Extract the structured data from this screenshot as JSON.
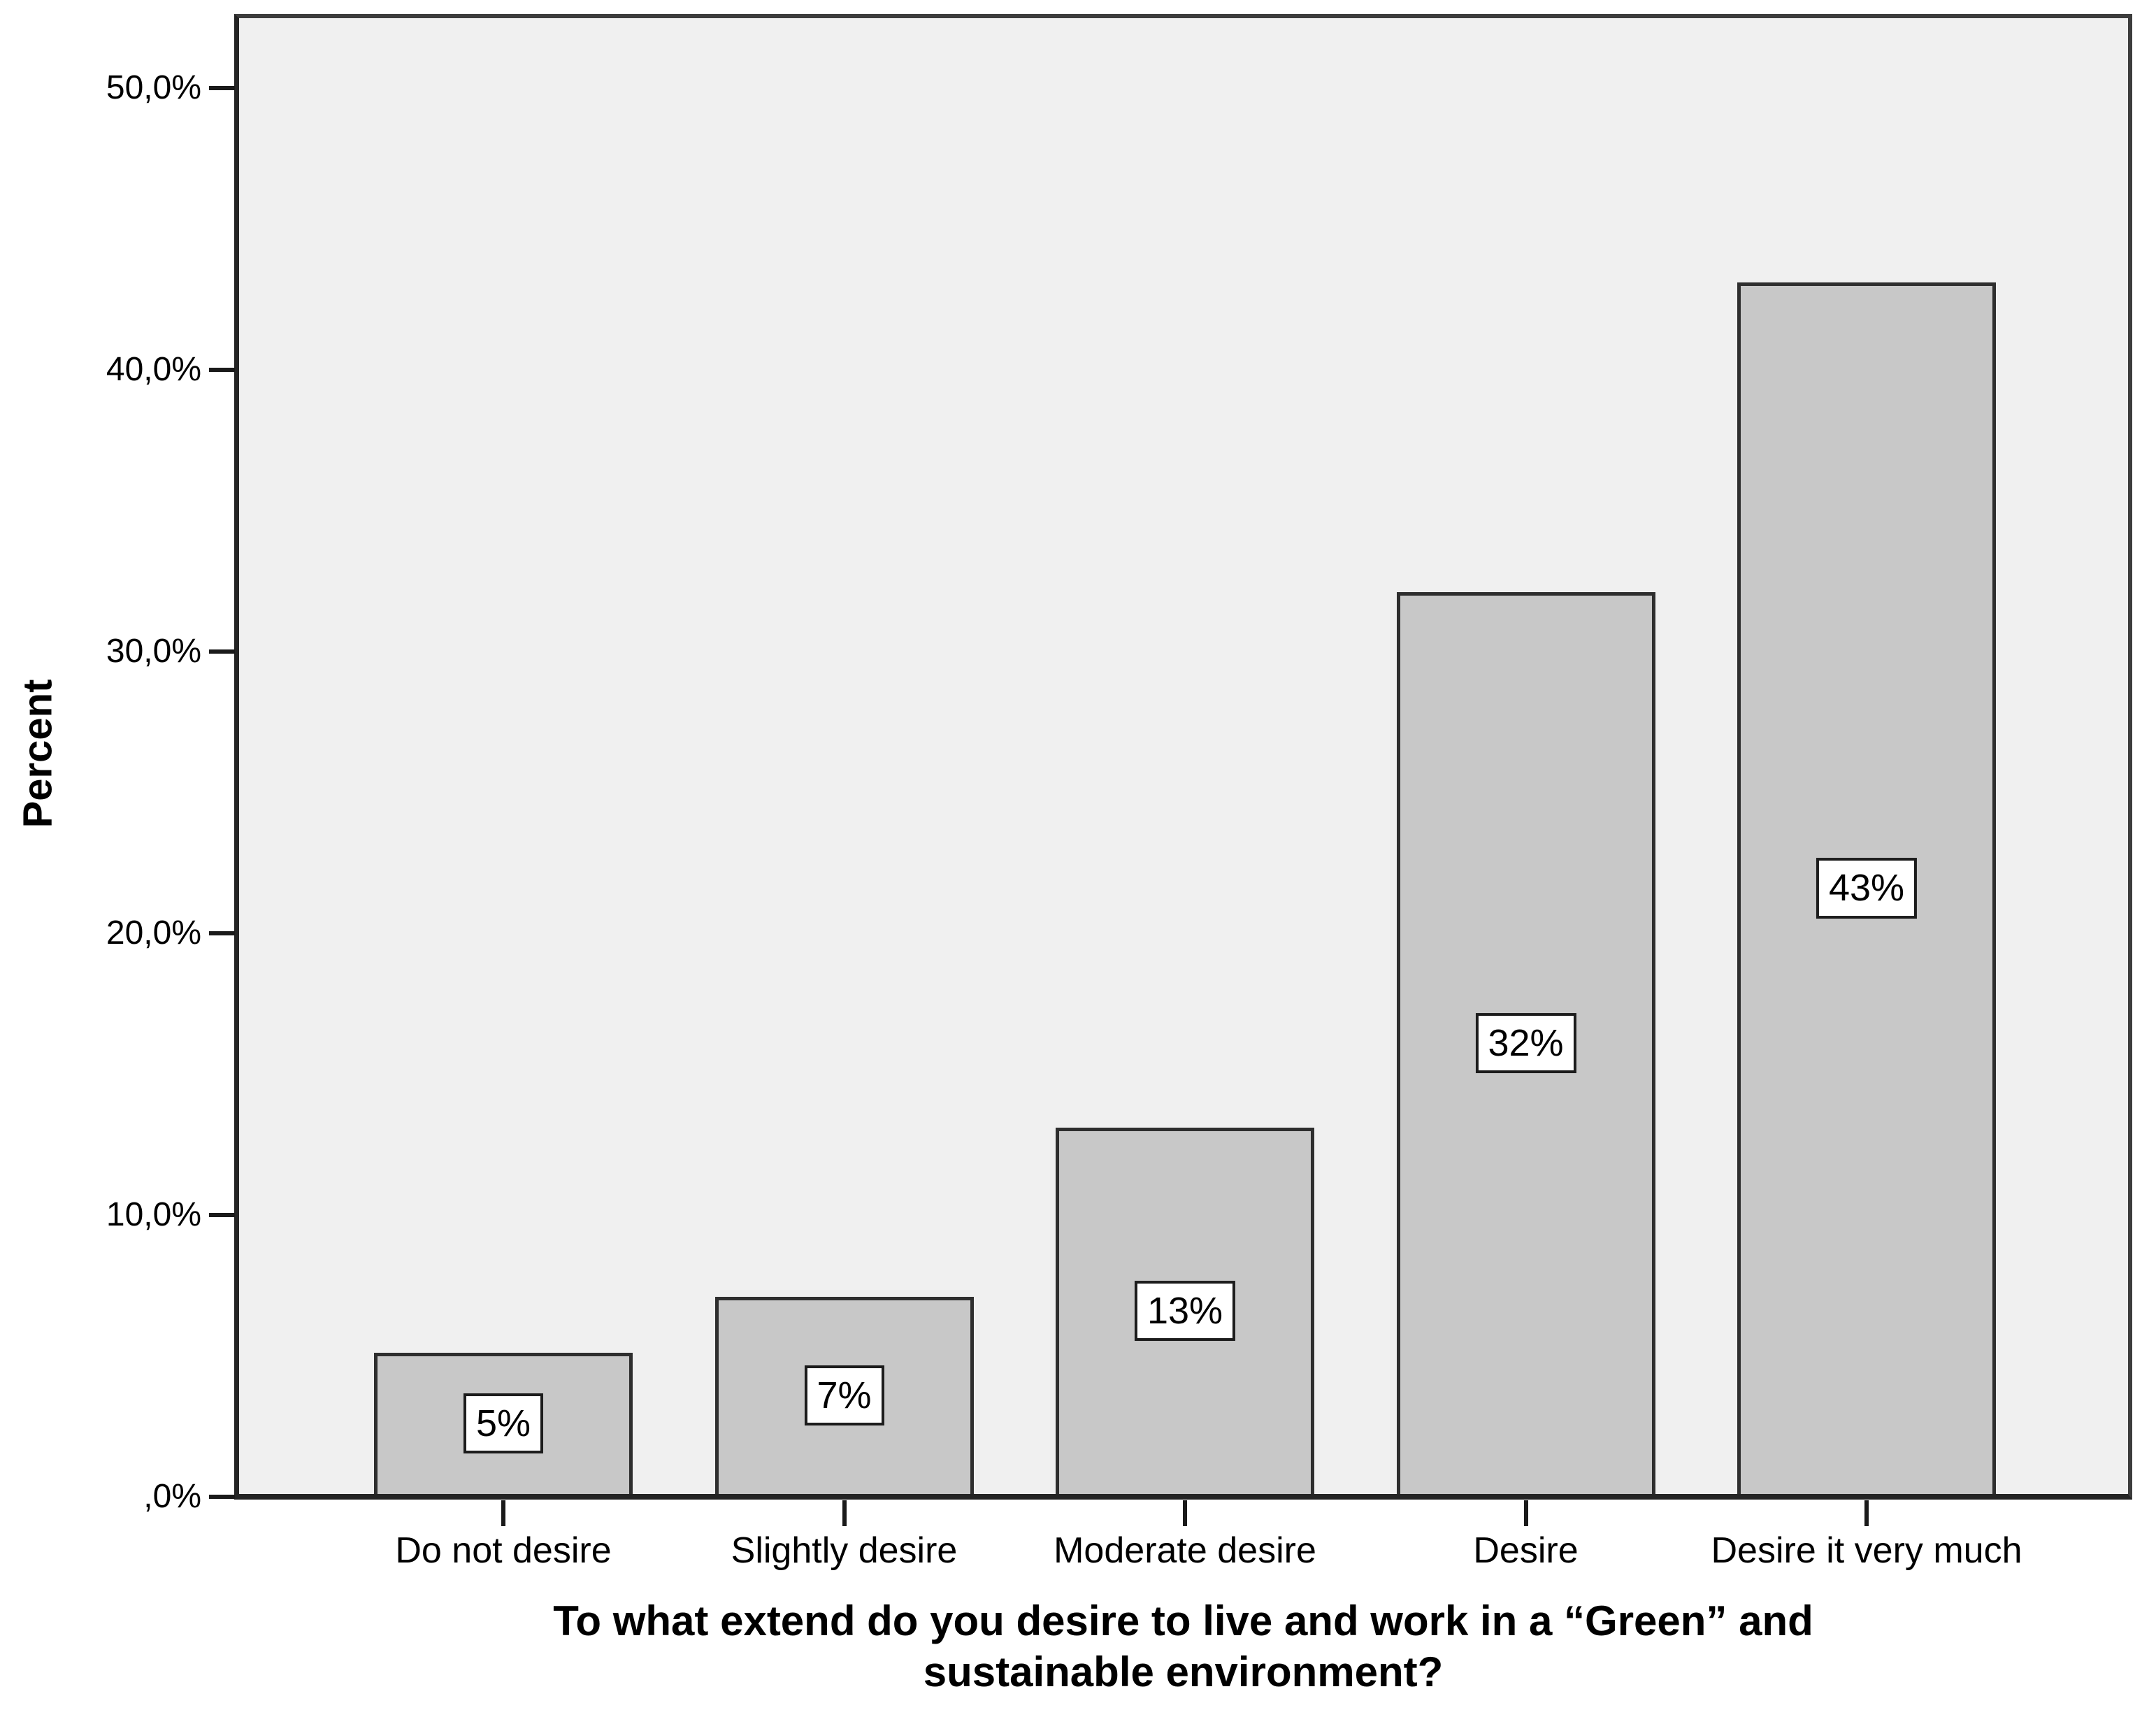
{
  "chart_data": {
    "type": "bar",
    "title": "To what extend do you desire to live and work in a “Green” and sustainable environment?",
    "title_lines": [
      "To what extend do you desire to live and work in a “Green” and",
      "sustainable environment?"
    ],
    "ylabel": "Percent",
    "xlabel": "",
    "categories": [
      "Do not desire",
      "Slightly desire",
      "Moderate desire",
      "Desire",
      "Desire it very much"
    ],
    "values": [
      5,
      7,
      13,
      32,
      43
    ],
    "value_labels": [
      "5%",
      "7%",
      "13%",
      "32%",
      "43%"
    ],
    "ytick_labels": [
      ",0%",
      "10,0%",
      "20,0%",
      "30,0%",
      "40,0%",
      "50,0%"
    ],
    "ytick_values": [
      0,
      10,
      20,
      30,
      40,
      50
    ],
    "ylim": [
      0,
      52.6
    ],
    "grid": false,
    "legend": "none",
    "colors": {
      "plot_bg": "#f0f0f0",
      "bar_fill": "#c8c8c8",
      "bar_border": "#2e2e2e",
      "frame_border": "#3d3d3d",
      "axis": "#1a1a1a",
      "label_box_bg": "#ffffff",
      "label_box_border": "#1c1c1c",
      "text": "#000000"
    }
  }
}
